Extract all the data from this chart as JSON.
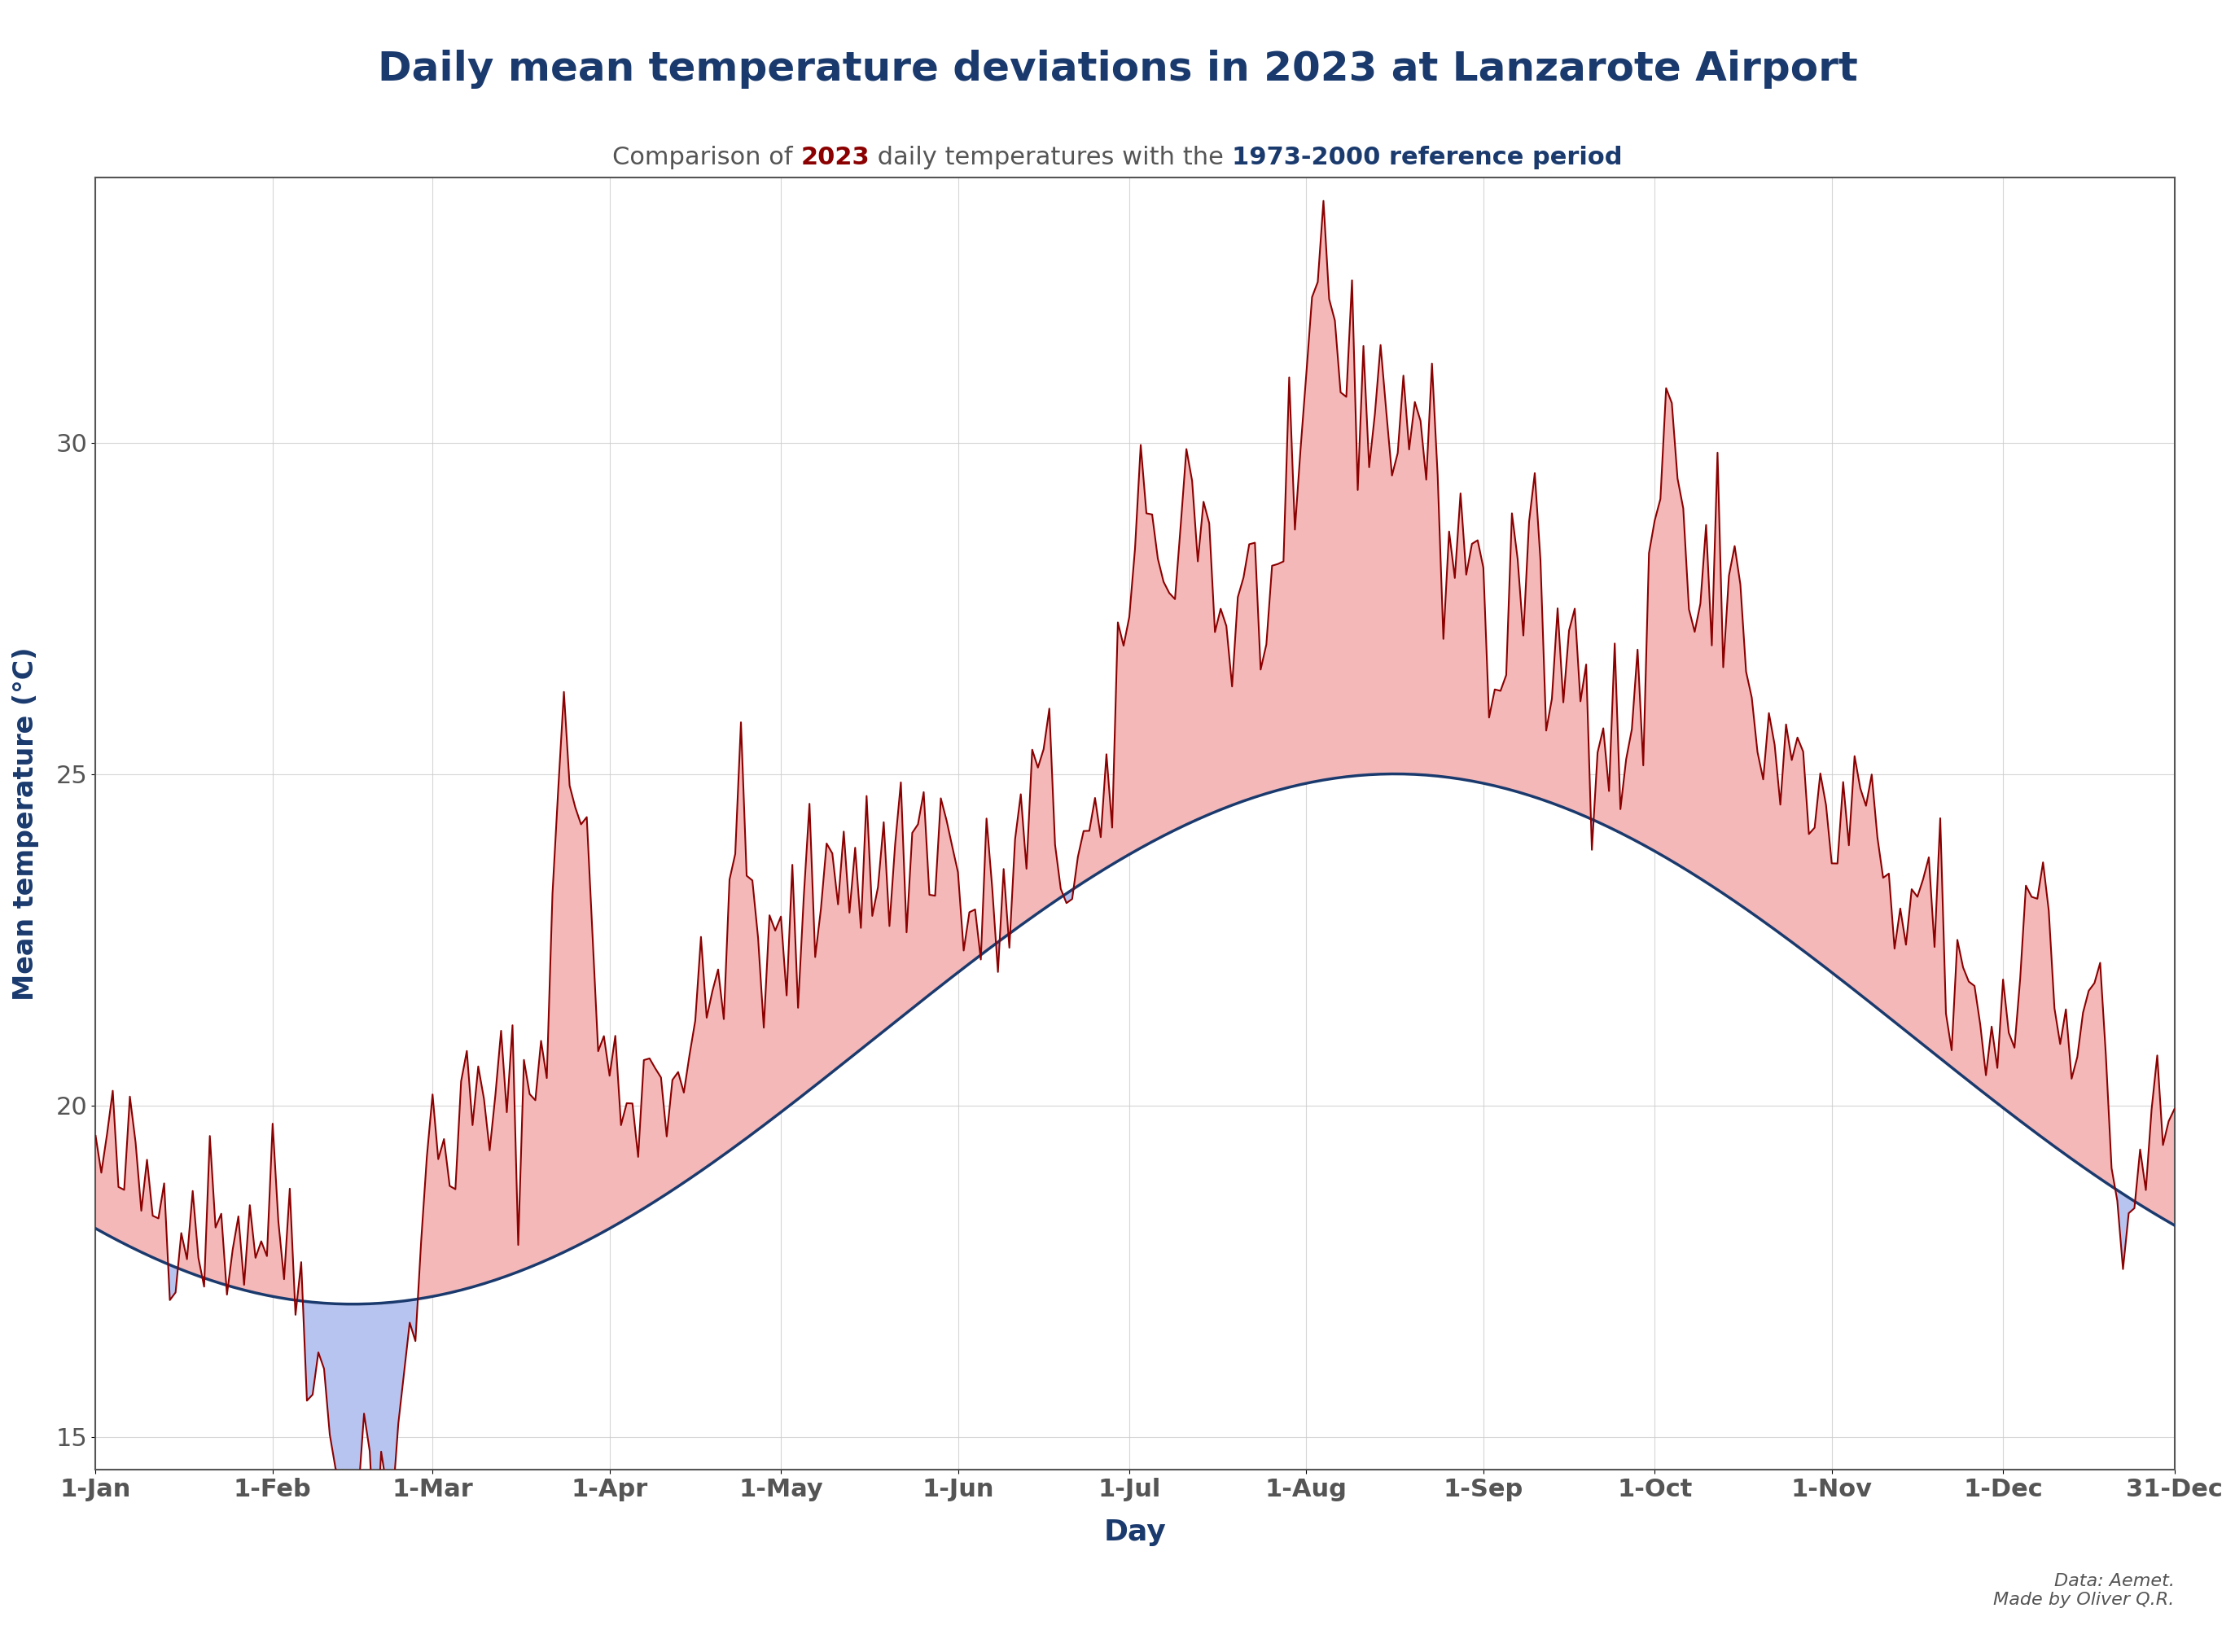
{
  "title": "Daily mean temperature deviations in 2023 at Lanzarote Airport",
  "subtitle_normal": "Comparison of ",
  "subtitle_2023": "2023",
  "subtitle_mid": " daily temperatures with the ",
  "subtitle_ref": "1973-2000 reference period",
  "xlabel": "Day",
  "ylabel": "Mean temperature (°C)",
  "title_color": "#1a3a6e",
  "subtitle_color": "#555555",
  "color_2023": "#8b0000",
  "color_ref": "#1a3a6e",
  "color_2023_text": "#8b0000",
  "color_ref_text": "#1a3a6e",
  "fill_above_color": "#f4b8b8",
  "fill_below_color": "#b8c4f0",
  "ylim": [
    14.5,
    34
  ],
  "yticks": [
    15,
    20,
    25,
    30
  ],
  "background_color": "#ffffff",
  "grid_color": "#cccccc",
  "data_source": "Data: Aemet.\nMade by Oliver Q.R.",
  "tick_label_color": "#555555",
  "axis_color": "#555555",
  "month_starts": [
    0,
    31,
    59,
    90,
    120,
    151,
    181,
    212,
    243,
    273,
    304,
    334,
    364
  ],
  "month_labels": [
    "1-Jan",
    "1-Feb",
    "1-Mar",
    "1-Apr",
    "1-May",
    "1-Jun",
    "1-Jul",
    "1-Aug",
    "1-Sep",
    "1-Oct",
    "1-Nov",
    "1-Dec",
    "31-Dec"
  ]
}
